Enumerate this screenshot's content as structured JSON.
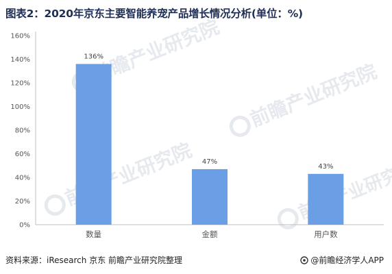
{
  "title": "图表2：2020年京东主要智能养宠产品增长情况分析(单位：%)",
  "footer": {
    "source": "资料来源：iResearch 京东 前瞻产业研究院整理",
    "brand": "@前瞻经济学人APP"
  },
  "watermark": {
    "text": "前瞻产业研究院"
  },
  "colors": {
    "bar": "#6a9fe6",
    "axis": "#bfbfbf",
    "title": "#1f2e55"
  },
  "chart_data": {
    "type": "bar",
    "title": "图表2：2020年京东主要智能养宠产品增长情况分析(单位：%)",
    "categories": [
      "数量",
      "金额",
      "用户数"
    ],
    "values": [
      136,
      47,
      43
    ],
    "value_labels": [
      "136%",
      "47%",
      "43%"
    ],
    "ylim": [
      0,
      160
    ],
    "yticks": [
      0,
      20,
      40,
      60,
      80,
      100,
      120,
      140,
      160
    ],
    "ytick_labels": [
      "0%",
      "20%",
      "40%",
      "60%",
      "80%",
      "100%",
      "120%",
      "140%",
      "160%"
    ],
    "xlabel": "",
    "ylabel": "",
    "grid": false,
    "legend": "none"
  }
}
